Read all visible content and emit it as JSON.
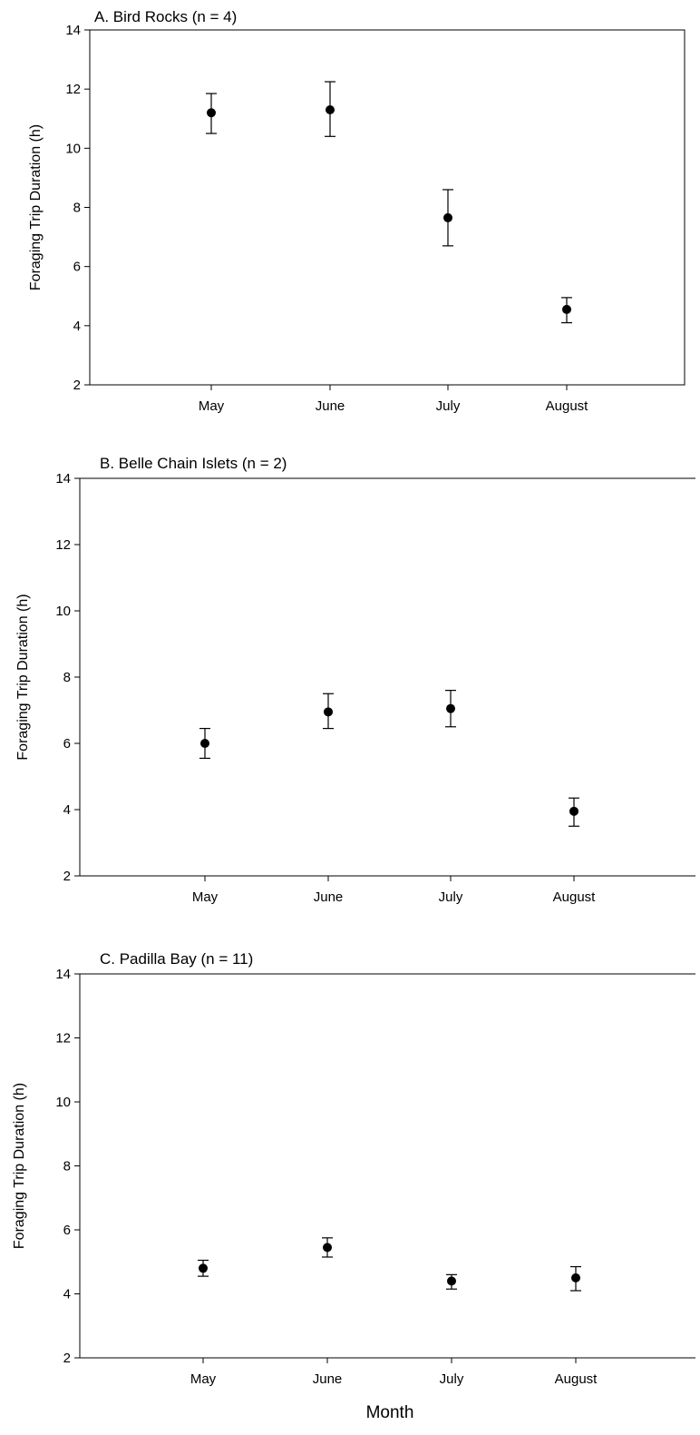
{
  "figure": {
    "xlabel": "Month",
    "colors": {
      "marker": "#000000",
      "axis": "#000000",
      "background": "#ffffff"
    }
  },
  "chart_data": [
    {
      "type": "scatter",
      "title": "A. Bird Rocks (n = 4)",
      "xlabel": "",
      "ylabel": "Foraging Trip Duration (h)",
      "ylim": [
        2,
        14
      ],
      "yticks": [
        2,
        4,
        6,
        8,
        10,
        12,
        14
      ],
      "categories": [
        "May",
        "June",
        "July",
        "August"
      ],
      "series": [
        {
          "values": [
            11.2,
            11.3,
            7.65,
            4.55
          ],
          "error_low": [
            10.5,
            10.4,
            6.7,
            4.1
          ],
          "error_high": [
            11.85,
            12.25,
            8.6,
            4.95
          ]
        }
      ],
      "grid": false
    },
    {
      "type": "scatter",
      "title": "B. Belle Chain Islets (n = 2)",
      "xlabel": "",
      "ylabel": "Foraging Trip Duration (h)",
      "ylim": [
        2,
        14
      ],
      "yticks": [
        2,
        4,
        6,
        8,
        10,
        12,
        14
      ],
      "categories": [
        "May",
        "June",
        "July",
        "August"
      ],
      "series": [
        {
          "values": [
            6.0,
            6.95,
            7.05,
            3.95
          ],
          "error_low": [
            5.55,
            6.45,
            6.5,
            3.5
          ],
          "error_high": [
            6.45,
            7.5,
            7.6,
            4.35
          ]
        }
      ],
      "grid": false
    },
    {
      "type": "scatter",
      "title": "C. Padilla Bay (n = 11)",
      "xlabel": "Month",
      "ylabel": "Foraging Trip Duration (h)",
      "ylim": [
        2,
        14
      ],
      "yticks": [
        2,
        4,
        6,
        8,
        10,
        12,
        14
      ],
      "categories": [
        "May",
        "June",
        "July",
        "August"
      ],
      "series": [
        {
          "values": [
            4.8,
            5.45,
            4.4,
            4.5
          ],
          "error_low": [
            4.55,
            5.15,
            4.15,
            4.1
          ],
          "error_high": [
            5.05,
            5.75,
            4.6,
            4.85
          ]
        }
      ],
      "grid": false
    }
  ]
}
